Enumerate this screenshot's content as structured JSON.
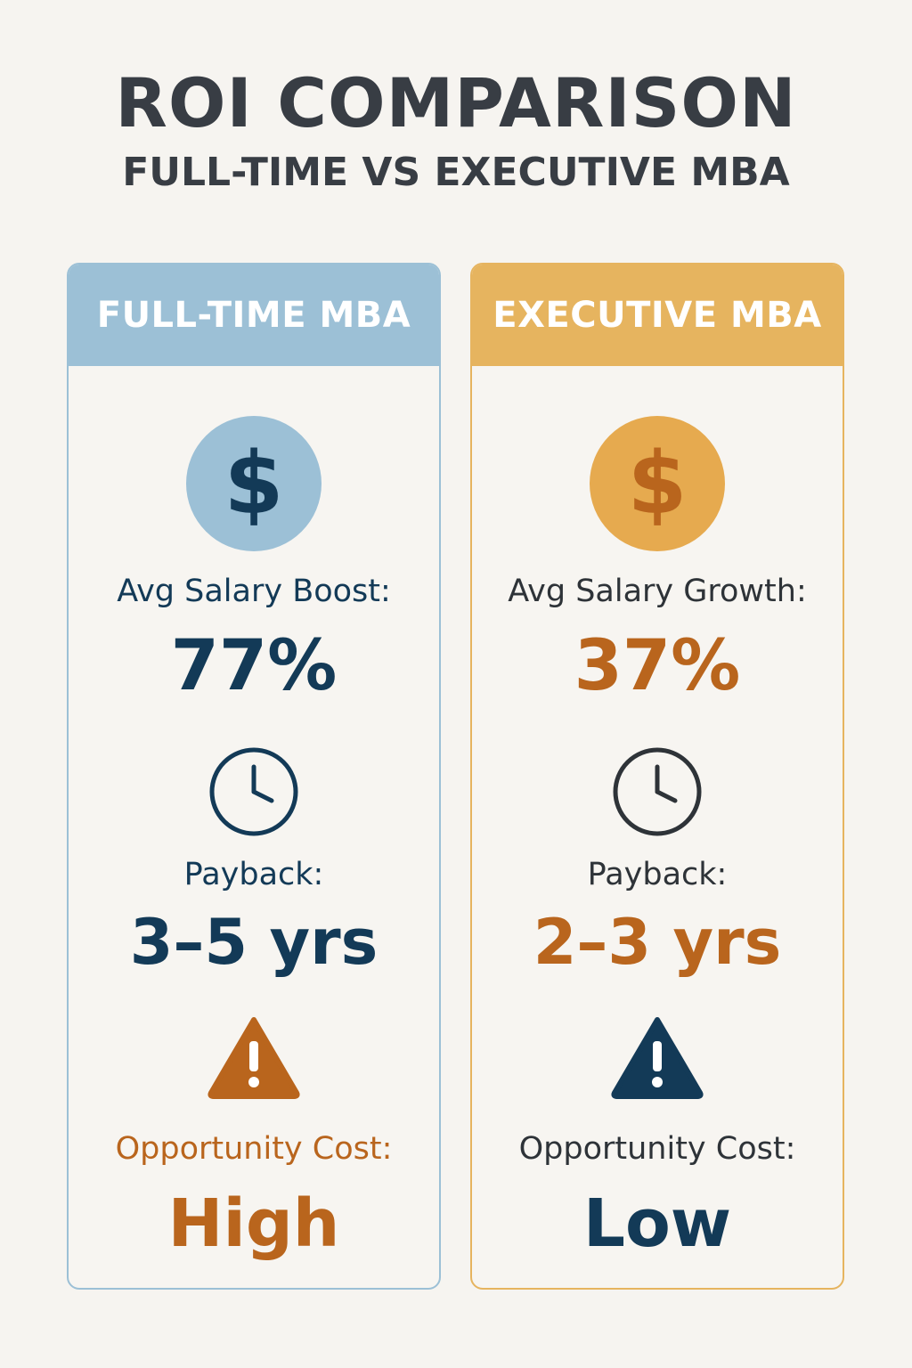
{
  "header": {
    "title": "ROI COMPARISON",
    "subtitle": "FULL-TIME VS EXECUTIVE MBA"
  },
  "cards": [
    {
      "title": "FULL-TIME MBA",
      "accent": "#9cc0d6",
      "icons": [
        "dollar-icon",
        "clock-icon",
        "warning-icon"
      ],
      "dollar_symbol": "$",
      "salary_label": "Avg Salary Boost:",
      "salary_value": "77%",
      "payback_label": "Payback:",
      "payback_value": "3–5 yrs",
      "opportunity_label": "Opportunity Cost:",
      "opportunity_value": "High"
    },
    {
      "title": "EXECUTIVE MBA",
      "accent": "#e6b45f",
      "icons": [
        "dollar-icon",
        "clock-icon",
        "warning-icon"
      ],
      "dollar_symbol": "$",
      "salary_label": "Avg Salary Growth:",
      "salary_value": "37%",
      "payback_label": "Payback:",
      "payback_value": "2–3 yrs",
      "opportunity_label": "Opportunity Cost:",
      "opportunity_value": "Low"
    }
  ],
  "colors": {
    "navy": "#133a57",
    "orange": "#b9651d",
    "text_dark": "#383d44",
    "background": "#f6f4f0"
  }
}
